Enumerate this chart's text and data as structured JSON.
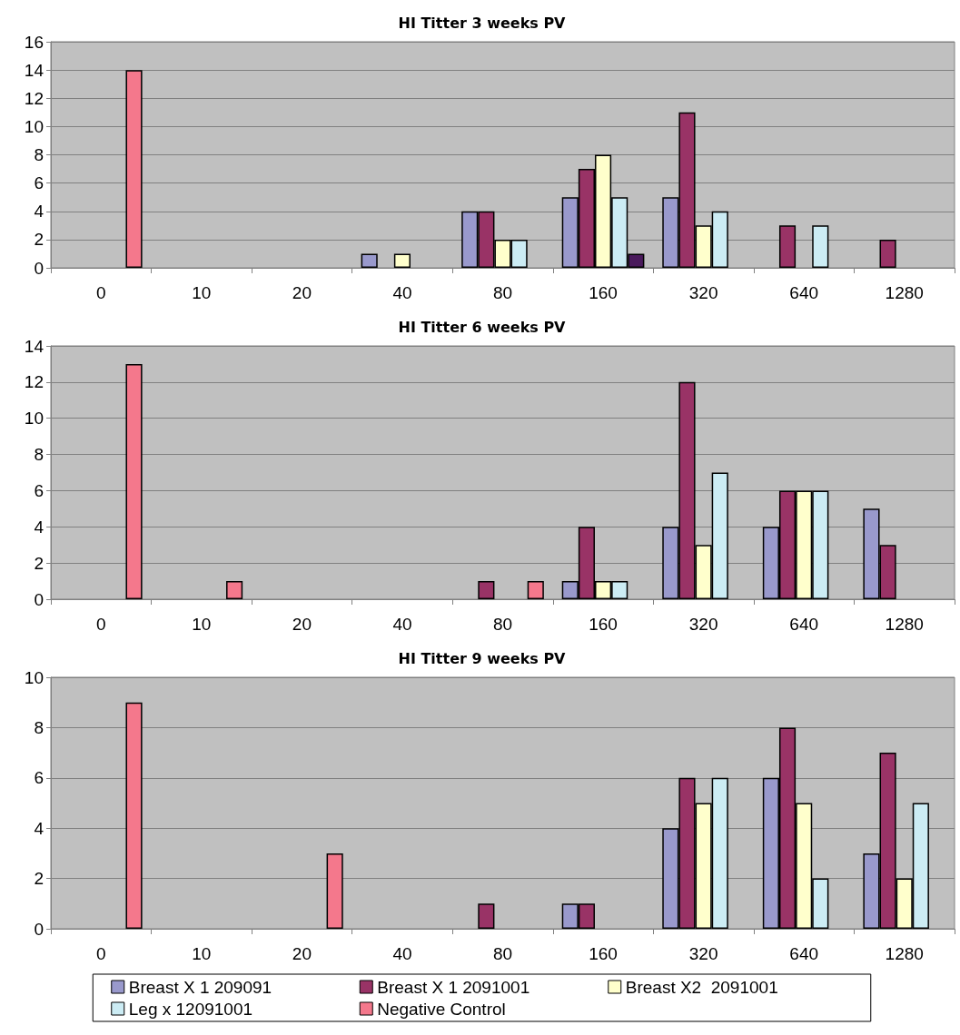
{
  "chart_data": [
    {
      "type": "bar",
      "title": "HI Titter 3 weeks PV",
      "categories": [
        "0",
        "10",
        "20",
        "40",
        "80",
        "160",
        "320",
        "640",
        "1280"
      ],
      "ylim": [
        0,
        16
      ],
      "yticks": [
        0,
        2,
        4,
        6,
        8,
        10,
        12,
        14,
        16
      ],
      "grid": "y",
      "series": [
        {
          "color": "#9999cc",
          "values": [
            null,
            null,
            null,
            1,
            4,
            5,
            5,
            null,
            null
          ]
        },
        {
          "color": "#993366",
          "values": [
            null,
            null,
            null,
            null,
            4,
            7,
            11,
            3,
            2
          ]
        },
        {
          "color": "#ffffcc",
          "values": [
            null,
            null,
            null,
            1,
            2,
            8,
            3,
            null,
            null
          ]
        },
        {
          "color": "#ccecf4",
          "values": [
            null,
            null,
            null,
            null,
            2,
            5,
            4,
            3,
            null
          ]
        },
        {
          "color": "#f4788c",
          "colors": [
            null,
            null,
            null,
            null,
            null,
            "#4a1a5c",
            null,
            null,
            null
          ],
          "values": [
            14,
            null,
            null,
            null,
            null,
            1,
            null,
            null,
            null
          ]
        }
      ]
    },
    {
      "type": "bar",
      "title": "HI Titter 6 weeks PV",
      "categories": [
        "0",
        "10",
        "20",
        "40",
        "80",
        "160",
        "320",
        "640",
        "1280"
      ],
      "ylim": [
        0,
        14
      ],
      "yticks": [
        0,
        2,
        4,
        6,
        8,
        10,
        12,
        14
      ],
      "grid": "y",
      "series": [
        {
          "color": "#9999cc",
          "values": [
            null,
            null,
            null,
            null,
            null,
            1,
            4,
            4,
            5
          ]
        },
        {
          "color": "#993366",
          "values": [
            null,
            null,
            null,
            null,
            1,
            4,
            12,
            6,
            3
          ]
        },
        {
          "color": "#ffffcc",
          "values": [
            null,
            null,
            null,
            null,
            null,
            1,
            3,
            6,
            null
          ]
        },
        {
          "color": "#ccecf4",
          "values": [
            null,
            null,
            null,
            null,
            null,
            1,
            7,
            6,
            null
          ]
        },
        {
          "color": "#f4788c",
          "values": [
            13,
            1,
            null,
            null,
            1,
            null,
            null,
            null,
            null
          ]
        }
      ]
    },
    {
      "type": "bar",
      "title": "HI Titter 9 weeks PV",
      "categories": [
        "0",
        "10",
        "20",
        "40",
        "80",
        "160",
        "320",
        "640",
        "1280"
      ],
      "ylim": [
        0,
        10
      ],
      "yticks": [
        0,
        2,
        4,
        6,
        8,
        10
      ],
      "grid": "y",
      "legend": "bottom",
      "series": [
        {
          "name": "Breast X 1 209091",
          "color": "#9999cc",
          "values": [
            null,
            null,
            null,
            null,
            null,
            1,
            4,
            6,
            3
          ]
        },
        {
          "name": "Breast X 1 2091001",
          "color": "#993366",
          "values": [
            null,
            null,
            null,
            null,
            1,
            1,
            6,
            8,
            7
          ]
        },
        {
          "name": "Breast X2  2091001",
          "color": "#ffffcc",
          "values": [
            null,
            null,
            null,
            null,
            null,
            null,
            5,
            5,
            2
          ]
        },
        {
          "name": "Leg x 12091001",
          "color": "#ccecf4",
          "values": [
            null,
            null,
            null,
            null,
            null,
            null,
            6,
            2,
            5
          ]
        },
        {
          "name": "Negative Control",
          "color": "#f4788c",
          "values": [
            9,
            null,
            3,
            null,
            null,
            null,
            null,
            null,
            null
          ]
        }
      ]
    }
  ]
}
